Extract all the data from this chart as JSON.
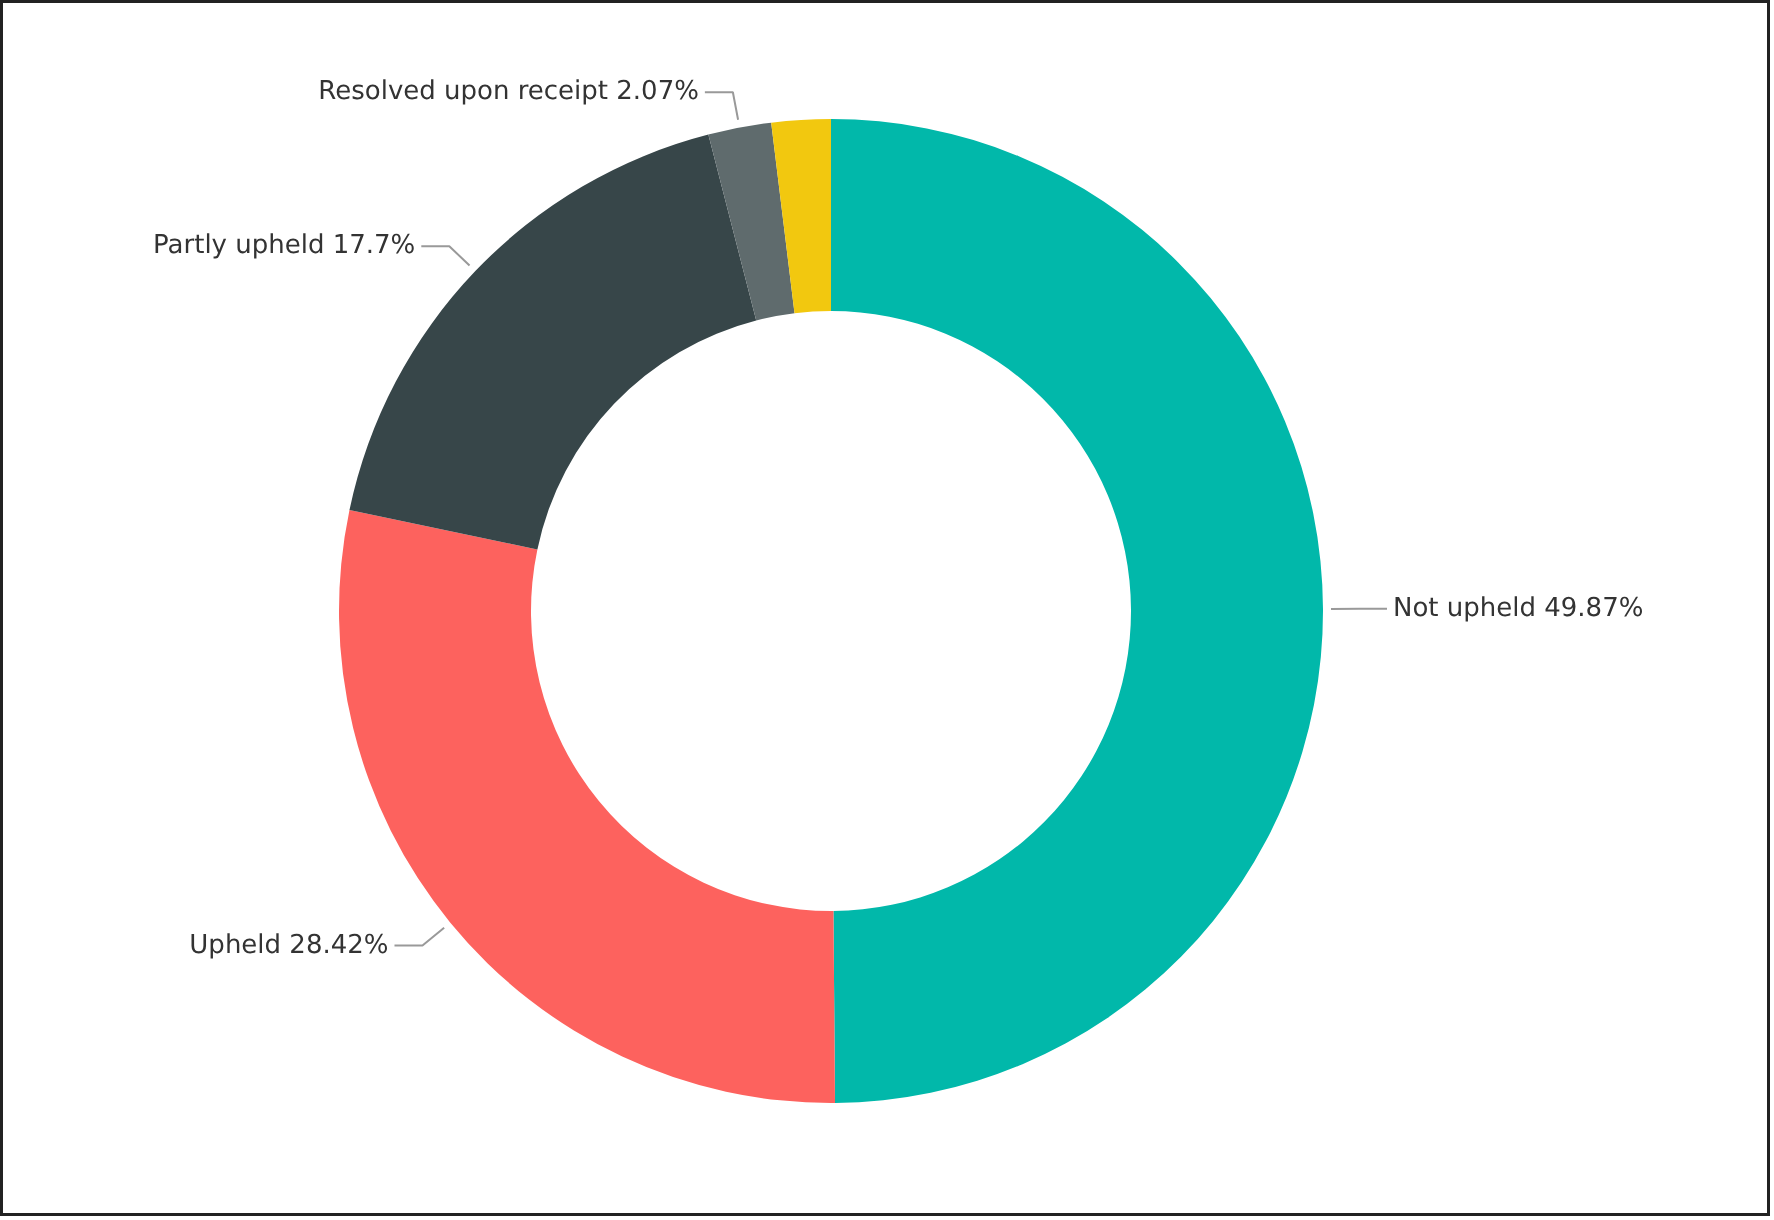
{
  "chart_data": {
    "type": "donut",
    "categories": [
      "Not upheld",
      "Upheld",
      "Partly upheld",
      "Resolved upon receipt",
      null
    ],
    "values": [
      49.87,
      28.42,
      17.7,
      2.07,
      1.94
    ],
    "colors": [
      "#01b8aa",
      "#fd625e",
      "#374649",
      "#5f6b6d",
      "#f2c80f"
    ],
    "value_labels": [
      "49.87%",
      "28.42%",
      "17.7%",
      "2.07%",
      null
    ]
  }
}
